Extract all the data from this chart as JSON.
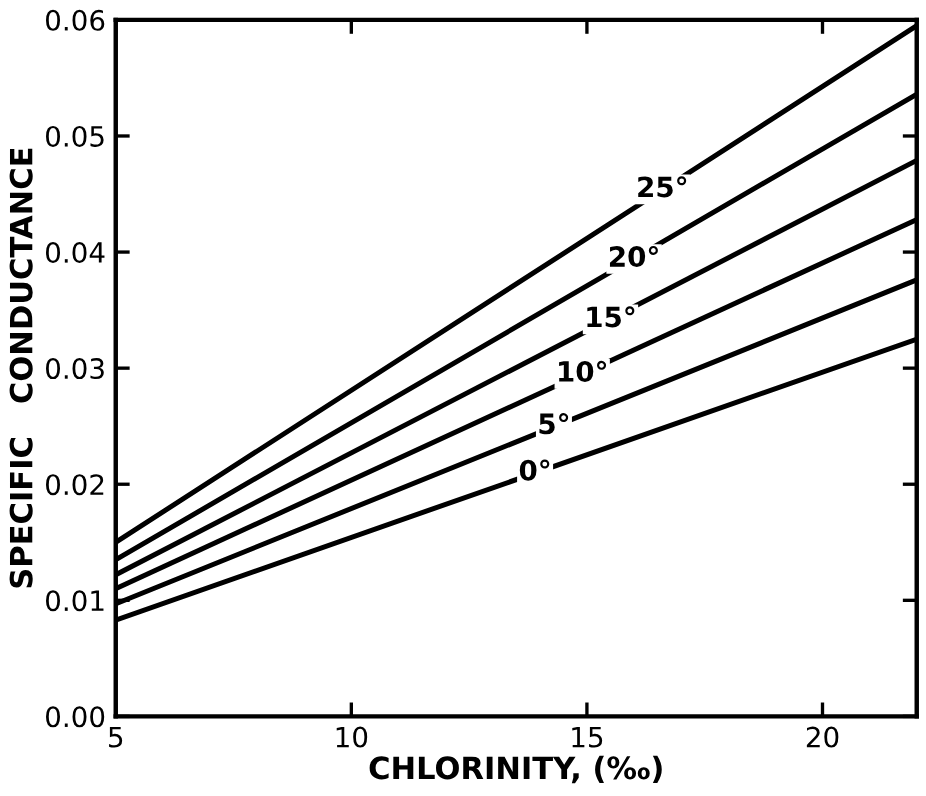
{
  "chart_data": {
    "type": "line",
    "xlabel": "CHLORINITY, (‰)",
    "ylabel": "SPECIFIC   CONDUCTANCE",
    "x": [
      5,
      22
    ],
    "series": [
      {
        "color": "#000000",
        "values": [
          0.0083,
          0.0325
        ]
      },
      {
        "color": "#000000",
        "values": [
          0.0097,
          0.0376
        ]
      },
      {
        "color": "#000000",
        "values": [
          0.011,
          0.0428
        ]
      },
      {
        "color": "#000000",
        "values": [
          0.0122,
          0.0479
        ]
      },
      {
        "color": "#000000",
        "values": [
          0.0135,
          0.0536
        ]
      },
      {
        "color": "#000000",
        "values": [
          0.015,
          0.0595
        ]
      }
    ],
    "annotations": [
      {
        "text": "0°",
        "x": 13.9,
        "y": 0.021
      },
      {
        "text": "5°",
        "x": 14.3,
        "y": 0.025
      },
      {
        "text": "10°",
        "x": 14.9,
        "y": 0.0295
      },
      {
        "text": "15°",
        "x": 15.5,
        "y": 0.0342
      },
      {
        "text": "20°",
        "x": 16.0,
        "y": 0.0394
      },
      {
        "text": "25°",
        "x": 16.6,
        "y": 0.0454
      }
    ],
    "xlim": [
      5,
      22
    ],
    "xticks": [
      5,
      10,
      15,
      20
    ],
    "ylim": [
      0,
      0.06
    ],
    "yticks": [
      {
        "value": 0,
        "label": "0.00"
      },
      0.01,
      0.02,
      0.03,
      0.04,
      0.05,
      0.06
    ],
    "grid": false,
    "legend": false,
    "marker": "none",
    "line_style": "solid"
  }
}
